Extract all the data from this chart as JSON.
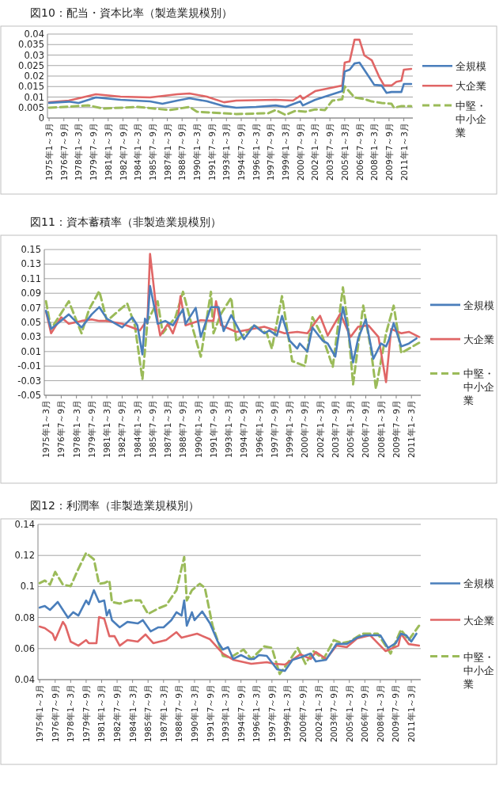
{
  "chart_data": [
    {
      "type": "line",
      "title": "図10：配当・資本比率（製造業規模別）",
      "xlim": [
        "1974-11",
        "2011-12"
      ],
      "ylim": [
        0,
        0.04
      ],
      "yticks": [
        0,
        0.005,
        0.01,
        0.015,
        0.02,
        0.025,
        0.03,
        0.035,
        0.04
      ],
      "grid": "y",
      "legend": "right",
      "xticks": [
        {
          "value": "1975-01",
          "label": "1975年1～3月"
        },
        {
          "value": "1976-07",
          "label": "1976年7～9月"
        },
        {
          "value": "1978-01",
          "label": "1978年1～3月"
        },
        {
          "value": "1979-07",
          "label": "1979年7～9月"
        },
        {
          "value": "1981-01",
          "label": "1981年1～3月"
        },
        {
          "value": "1982-07",
          "label": "1982年7～9月"
        },
        {
          "value": "1984-01",
          "label": "1984年1～3月"
        },
        {
          "value": "1985-07",
          "label": "1985年7～9月"
        },
        {
          "value": "1987-01",
          "label": "1987年1～3月"
        },
        {
          "value": "1988-07",
          "label": "1988年7～9月"
        },
        {
          "value": "1990-01",
          "label": "1990年1～3月"
        },
        {
          "value": "1991-07",
          "label": "1991年7～9月"
        },
        {
          "value": "1993-01",
          "label": "1993年1～3月"
        },
        {
          "value": "1994-07",
          "label": "1994年7～9月"
        },
        {
          "value": "1996-01",
          "label": "1996年1～3月"
        },
        {
          "value": "1997-07",
          "label": "1997年7～9月"
        },
        {
          "value": "1999-01",
          "label": "1999年1～3月"
        },
        {
          "value": "2000-07",
          "label": "2000年7～9月"
        },
        {
          "value": "2002-01",
          "label": "2002年1～3月"
        },
        {
          "value": "2003-07",
          "label": "2003年7～9月"
        },
        {
          "value": "2005-01",
          "label": "2005年1～3月"
        },
        {
          "value": "2006-07",
          "label": "2006年7～9月"
        },
        {
          "value": "2008-01",
          "label": "2008年1～3月"
        },
        {
          "value": "2009-07",
          "label": "2009年7～9月"
        },
        {
          "value": "2011-01",
          "label": "2011年1～3月"
        }
      ],
      "series": [
        {
          "name": "全規模",
          "color": "#4a7ebb",
          "line_style": "solid",
          "x": [
            "1975-01",
            "1977-01",
            "1978-01",
            "1979-10",
            "1982-04",
            "1985-04",
            "1986-07",
            "1988-01",
            "1989-04",
            "1991-01",
            "1992-10",
            "1994-01",
            "1996-01",
            "1998-01",
            "1999-01",
            "2000-07",
            "2000-10",
            "2002-01",
            "2004-01",
            "2004-10",
            "2005-01",
            "2005-07",
            "2006-01",
            "2006-07",
            "2007-04",
            "2008-01",
            "2008-10",
            "2009-04",
            "2009-10",
            "2010-10",
            "2011-01",
            "2011-10"
          ],
          "values": [
            0.0072,
            0.0078,
            0.0072,
            0.0098,
            0.0087,
            0.0079,
            0.0068,
            0.0083,
            0.0094,
            0.008,
            0.0057,
            0.0049,
            0.0053,
            0.006,
            0.0053,
            0.0079,
            0.006,
            0.0087,
            0.0117,
            0.0128,
            0.0222,
            0.023,
            0.026,
            0.0264,
            0.0211,
            0.0158,
            0.0155,
            0.012,
            0.0124,
            0.0124,
            0.0162,
            0.0162
          ]
        },
        {
          "name": "大企業",
          "color": "#e06666",
          "line_style": "solid",
          "x": [
            "1975-01",
            "1977-01",
            "1979-10",
            "1982-04",
            "1985-04",
            "1988-01",
            "1989-04",
            "1991-01",
            "1992-10",
            "1994-01",
            "1998-01",
            "1999-10",
            "2000-07",
            "2000-10",
            "2002-01",
            "2004-10",
            "2005-01",
            "2005-07",
            "2006-01",
            "2006-07",
            "2007-01",
            "2007-10",
            "2008-07",
            "2009-01",
            "2009-10",
            "2010-04",
            "2010-10",
            "2011-01",
            "2011-10"
          ],
          "values": [
            0.0075,
            0.0083,
            0.0113,
            0.0102,
            0.0098,
            0.0113,
            0.0117,
            0.0102,
            0.0075,
            0.0083,
            0.0087,
            0.0083,
            0.0106,
            0.0091,
            0.0128,
            0.0155,
            0.0264,
            0.027,
            0.0373,
            0.0373,
            0.0298,
            0.0275,
            0.0196,
            0.0155,
            0.0155,
            0.0173,
            0.0177,
            0.023,
            0.0234
          ]
        },
        {
          "name": "中堅・中小企業",
          "color": "#9bbb59",
          "line_style": "dashed",
          "x": [
            "1975-01",
            "1979-01",
            "1980-07",
            "1984-01",
            "1987-04",
            "1989-04",
            "1990-01",
            "1994-01",
            "1997-04",
            "1998-01",
            "1999-01",
            "2000-01",
            "2001-01",
            "2002-01",
            "2003-01",
            "2003-10",
            "2004-10",
            "2005-01",
            "2006-01",
            "2007-01",
            "2007-10",
            "2008-10",
            "2009-10",
            "2010-01",
            "2010-10",
            "2011-10"
          ],
          "values": [
            0.0049,
            0.006,
            0.0045,
            0.0053,
            0.0038,
            0.0053,
            0.003,
            0.0019,
            0.0023,
            0.0038,
            0.0015,
            0.0034,
            0.003,
            0.0041,
            0.0038,
            0.0083,
            0.009,
            0.0151,
            0.0098,
            0.009,
            0.0079,
            0.0072,
            0.0068,
            0.0049,
            0.0057,
            0.0057
          ]
        }
      ]
    },
    {
      "type": "line",
      "title": "図11：資本蓄積率（非製造業規模別）",
      "xlim": [
        "1974-11",
        "2011-12"
      ],
      "ylim": [
        -0.05,
        0.15
      ],
      "yticks": [
        -0.05,
        -0.03,
        -0.01,
        0.01,
        0.03,
        0.05,
        0.07,
        0.09,
        0.11,
        0.13,
        0.15
      ],
      "grid": "y",
      "legend": "right",
      "xticks": [
        {
          "value": "1975-01",
          "label": "1975年1～3月"
        },
        {
          "value": "1976-07",
          "label": "1976年7～9月"
        },
        {
          "value": "1978-01",
          "label": "1978年1～3月"
        },
        {
          "value": "1979-07",
          "label": "1979年7～9月"
        },
        {
          "value": "1981-01",
          "label": "1981年1～3月"
        },
        {
          "value": "1982-07",
          "label": "1982年7～9月"
        },
        {
          "value": "1984-01",
          "label": "1984年1～3月"
        },
        {
          "value": "1985-07",
          "label": "1985年7～9月"
        },
        {
          "value": "1987-01",
          "label": "1987年1～3月"
        },
        {
          "value": "1988-07",
          "label": "1988年7～9月"
        },
        {
          "value": "1990-01",
          "label": "1990年1～3月"
        },
        {
          "value": "1991-07",
          "label": "1991年7～9月"
        },
        {
          "value": "1993-01",
          "label": "1993年1～3月"
        },
        {
          "value": "1994-07",
          "label": "1994年7～9月"
        },
        {
          "value": "1996-01",
          "label": "1996年1～3月"
        },
        {
          "value": "1997-07",
          "label": "1997年7～9月"
        },
        {
          "value": "1999-01",
          "label": "1999年1～3月"
        },
        {
          "value": "2000-07",
          "label": "2000年7～9月"
        },
        {
          "value": "2002-01",
          "label": "2002年1～3月"
        },
        {
          "value": "2003-07",
          "label": "2003年7～9月"
        },
        {
          "value": "2005-01",
          "label": "2005年1～3月"
        },
        {
          "value": "2006-07",
          "label": "2006年7～9月"
        },
        {
          "value": "2008-01",
          "label": "2008年1～3月"
        },
        {
          "value": "2009-07",
          "label": "2009年7～9月"
        },
        {
          "value": "2011-01",
          "label": "2011年1～3月"
        }
      ],
      "series": [
        {
          "name": "全規模",
          "color": "#4a7ebb",
          "line_style": "solid",
          "x": [
            "1975-01",
            "1975-07",
            "1977-04",
            "1978-07",
            "1979-07",
            "1980-04",
            "1981-01",
            "1981-10",
            "1982-07",
            "1983-07",
            "1984-01",
            "1984-07",
            "1984-10",
            "1985-01",
            "1985-04",
            "1986-01",
            "1986-10",
            "1987-07",
            "1988-07",
            "1988-10",
            "1989-10",
            "1990-04",
            "1991-04",
            "1992-01",
            "1992-07",
            "1993-04",
            "1994-07",
            "1995-07",
            "1996-07",
            "1997-01",
            "1997-10",
            "1998-04",
            "1999-01",
            "1999-10",
            "2000-01",
            "2000-10",
            "2001-04",
            "2002-04",
            "2002-10",
            "2003-07",
            "2004-04",
            "2004-10",
            "2005-04",
            "2005-10",
            "2006-07",
            "2007-04",
            "2008-01",
            "2008-07",
            "2008-10",
            "2009-04",
            "2010-01",
            "2010-10",
            "2011-07"
          ],
          "values": [
            0.066,
            0.041,
            0.061,
            0.043,
            0.061,
            0.071,
            0.055,
            0.049,
            0.043,
            0.057,
            0.046,
            0.006,
            0.055,
            0.049,
            0.1,
            0.048,
            0.052,
            0.046,
            0.068,
            0.048,
            0.07,
            0.03,
            0.071,
            0.071,
            0.038,
            0.06,
            0.027,
            0.046,
            0.035,
            0.039,
            0.032,
            0.059,
            0.025,
            0.014,
            0.021,
            0.01,
            0.043,
            0.025,
            0.021,
            0.003,
            0.071,
            0.039,
            -0.005,
            0.028,
            0.054,
            0,
            0.021,
            0.017,
            0.025,
            0.049,
            0.017,
            0.021,
            0.028
          ]
        },
        {
          "name": "大企業",
          "color": "#e06666",
          "line_style": "solid",
          "x": [
            "1975-01",
            "1975-07",
            "1976-07",
            "1977-04",
            "1978-07",
            "1979-07",
            "1980-04",
            "1981-01",
            "1982-07",
            "1983-07",
            "1984-04",
            "1985-01",
            "1985-04",
            "1986-01",
            "1986-04",
            "1987-01",
            "1987-07",
            "1988-01",
            "1988-04",
            "1988-10",
            "1990-04",
            "1991-07",
            "1991-10",
            "1992-04",
            "1993-10",
            "1996-07",
            "1998-07",
            "1999-10",
            "2000-10",
            "2002-01",
            "2002-10",
            "2004-01",
            "2005-01",
            "2005-10",
            "2006-10",
            "2007-10",
            "2008-07",
            "2009-01",
            "2010-01",
            "2010-10",
            "2011-10"
          ],
          "values": [
            0.065,
            0.035,
            0.057,
            0.048,
            0.052,
            0.054,
            0.052,
            0.052,
            0.048,
            0.043,
            0.039,
            0.054,
            0.144,
            0.052,
            0.032,
            0.048,
            0.035,
            0.055,
            0.086,
            0.046,
            0.053,
            0.052,
            0.079,
            0.046,
            0.037,
            0.044,
            0.035,
            0.037,
            0.035,
            0.059,
            0.032,
            0.062,
            0.03,
            0.044,
            0.046,
            0.03,
            -0.032,
            0.041,
            0.035,
            0.037,
            0.03
          ]
        },
        {
          "name": "中堅・中小企業",
          "color": "#9bbb59",
          "line_style": "dashed",
          "x": [
            "1975-01",
            "1975-07",
            "1977-04",
            "1978-07",
            "1979-04",
            "1980-04",
            "1981-01",
            "1983-01",
            "1983-10",
            "1984-07",
            "1985-01",
            "1986-01",
            "1986-07",
            "1987-10",
            "1988-07",
            "1989-04",
            "1990-04",
            "1991-04",
            "1991-07",
            "1992-04",
            "1993-04",
            "1993-10",
            "1995-07",
            "1996-10",
            "1997-04",
            "1998-04",
            "1999-04",
            "2000-07",
            "2001-04",
            "2002-04",
            "2003-04",
            "2004-04",
            "2004-10",
            "2005-04",
            "2006-04",
            "2007-01",
            "2007-07",
            "2008-07",
            "2009-04",
            "2010-01",
            "2010-10",
            "2011-10"
          ],
          "values": [
            0.079,
            0.041,
            0.079,
            0.035,
            0.068,
            0.093,
            0.052,
            0.076,
            0.046,
            -0.028,
            0.052,
            0.079,
            0.035,
            0.057,
            0.092,
            0.052,
            0.003,
            0.092,
            0.035,
            0.062,
            0.084,
            0.024,
            0.046,
            0.035,
            0.014,
            0.086,
            -0.003,
            -0.01,
            0.057,
            0.03,
            -0.011,
            0.098,
            0.046,
            -0.035,
            0.073,
            0.014,
            -0.041,
            0.035,
            0.073,
            0.008,
            0.014,
            0.022
          ]
        }
      ]
    },
    {
      "type": "line",
      "title": "図12：利潤率（非製造業規模別）",
      "xlim": [
        "1974-11",
        "2011-12"
      ],
      "ylim": [
        0.04,
        0.14
      ],
      "yticks": [
        0.04,
        0.06,
        0.08,
        0.1,
        0.12,
        0.14
      ],
      "grid": "y",
      "legend": "right",
      "xticks": [
        {
          "value": "1975-01",
          "label": "1975年1～3月"
        },
        {
          "value": "1976-07",
          "label": "1976年7～9月"
        },
        {
          "value": "1978-01",
          "label": "1978年1～3月"
        },
        {
          "value": "1979-07",
          "label": "1979年7～9月"
        },
        {
          "value": "1981-01",
          "label": "1981年1～3月"
        },
        {
          "value": "1982-07",
          "label": "1982年7～9月"
        },
        {
          "value": "1984-01",
          "label": "1984年1～3月"
        },
        {
          "value": "1985-07",
          "label": "1985年7～9月"
        },
        {
          "value": "1987-01",
          "label": "1987年1～3月"
        },
        {
          "value": "1988-07",
          "label": "1988年7～9月"
        },
        {
          "value": "1990-01",
          "label": "1990年1～3月"
        },
        {
          "value": "1991-07",
          "label": "1991年7～9月"
        },
        {
          "value": "1993-01",
          "label": "1993年1～3月"
        },
        {
          "value": "1994-07",
          "label": "1994年7～9月"
        },
        {
          "value": "1996-01",
          "label": "1996年1～3月"
        },
        {
          "value": "1997-07",
          "label": "1997年7～9月"
        },
        {
          "value": "1999-01",
          "label": "1999年1～3月"
        },
        {
          "value": "2000-07",
          "label": "2000年7～9月"
        },
        {
          "value": "2002-01",
          "label": "2002年1～3月"
        },
        {
          "value": "2003-07",
          "label": "2003年7～9月"
        },
        {
          "value": "2005-01",
          "label": "2005年1～3月"
        },
        {
          "value": "2006-07",
          "label": "2006年7～9月"
        },
        {
          "value": "2008-01",
          "label": "2008年1～3月"
        },
        {
          "value": "2009-07",
          "label": "2009年7～9月"
        },
        {
          "value": "2011-01",
          "label": "2011年1～3月"
        }
      ],
      "series": [
        {
          "name": "全規模",
          "color": "#4a7ebb",
          "line_style": "solid",
          "x": [
            "1975-01",
            "1975-07",
            "1976-01",
            "1976-10",
            "1977-10",
            "1978-04",
            "1978-10",
            "1979-07",
            "1979-10",
            "1980-04",
            "1980-10",
            "1981-04",
            "1981-07",
            "1981-10",
            "1982-01",
            "1982-10",
            "1983-07",
            "1984-07",
            "1985-01",
            "1985-10",
            "1986-07",
            "1987-01",
            "1987-10",
            "1988-04",
            "1988-10",
            "1989-01",
            "1989-04",
            "1989-10",
            "1990-01",
            "1990-10",
            "1991-01",
            "1991-07",
            "1992-04",
            "1992-10",
            "1993-04",
            "1993-10",
            "1994-07",
            "1995-04",
            "1995-10",
            "1996-04",
            "1997-01",
            "1998-01",
            "1998-10",
            "1999-07",
            "2000-04",
            "2001-04",
            "2001-10",
            "2002-10",
            "2003-10",
            "2004-10",
            "2005-10",
            "2006-07",
            "2007-04",
            "2008-01",
            "2008-10",
            "2009-07",
            "2010-01",
            "2010-07",
            "2011-01",
            "2011-07"
          ],
          "values": [
            0.0864,
            0.0874,
            0.0849,
            0.09,
            0.0798,
            0.0834,
            0.0813,
            0.091,
            0.0885,
            0.0976,
            0.09,
            0.091,
            0.0813,
            0.0849,
            0.0783,
            0.0737,
            0.0772,
            0.0762,
            0.0783,
            0.0711,
            0.0737,
            0.0737,
            0.0783,
            0.0834,
            0.0813,
            0.091,
            0.0747,
            0.0834,
            0.0783,
            0.0839,
            0.0813,
            0.0762,
            0.0645,
            0.0594,
            0.0609,
            0.0533,
            0.0558,
            0.0533,
            0.0533,
            0.0558,
            0.0553,
            0.0466,
            0.0456,
            0.0528,
            0.0543,
            0.0568,
            0.0517,
            0.0528,
            0.063,
            0.063,
            0.067,
            0.0686,
            0.0686,
            0.0686,
            0.0604,
            0.0635,
            0.0696,
            0.0686,
            0.0645,
            0.0696
          ]
        },
        {
          "name": "大企業",
          "color": "#e06666",
          "line_style": "solid",
          "x": [
            "1975-01",
            "1975-07",
            "1976-04",
            "1976-07",
            "1977-04",
            "1977-07",
            "1978-01",
            "1978-10",
            "1979-07",
            "1979-10",
            "1980-07",
            "1980-10",
            "1981-04",
            "1981-10",
            "1982-04",
            "1982-10",
            "1983-07",
            "1984-07",
            "1985-04",
            "1986-01",
            "1987-04",
            "1988-04",
            "1988-10",
            "1990-04",
            "1991-07",
            "1992-10",
            "1993-10",
            "1995-07",
            "1997-01",
            "1997-10",
            "1998-10",
            "1999-07",
            "2000-04",
            "2001-04",
            "2001-10",
            "2002-10",
            "2003-10",
            "2004-10",
            "2005-10",
            "2007-01",
            "2008-07",
            "2009-10",
            "2010-01",
            "2010-10",
            "2011-10"
          ],
          "values": [
            0.0742,
            0.0732,
            0.0696,
            0.0655,
            0.0772,
            0.0747,
            0.0645,
            0.0619,
            0.0655,
            0.0635,
            0.0635,
            0.0803,
            0.0793,
            0.068,
            0.068,
            0.0619,
            0.0655,
            0.0645,
            0.0691,
            0.0635,
            0.0655,
            0.0706,
            0.067,
            0.0696,
            0.066,
            0.0568,
            0.0528,
            0.0502,
            0.0512,
            0.0502,
            0.0497,
            0.0528,
            0.0563,
            0.0533,
            0.0578,
            0.0533,
            0.0619,
            0.0609,
            0.0665,
            0.0686,
            0.0584,
            0.0619,
            0.0696,
            0.0629,
            0.0619
          ]
        },
        {
          "name": "中堅・中小企業",
          "color": "#9bbb59",
          "line_style": "dashed",
          "x": [
            "1975-01",
            "1975-07",
            "1976-01",
            "1976-07",
            "1977-04",
            "1978-01",
            "1978-10",
            "1979-07",
            "1980-04",
            "1980-10",
            "1981-04",
            "1981-10",
            "1982-01",
            "1982-10",
            "1983-10",
            "1984-10",
            "1985-07",
            "1986-07",
            "1987-04",
            "1988-04",
            "1989-01",
            "1989-04",
            "1989-10",
            "1990-07",
            "1991-01",
            "1991-10",
            "1992-10",
            "1993-07",
            "1994-10",
            "1995-07",
            "1996-10",
            "1997-07",
            "1998-04",
            "1999-04",
            "2000-01",
            "2000-10",
            "2001-07",
            "2002-07",
            "2003-07",
            "2004-04",
            "2005-01",
            "2006-04",
            "2007-10",
            "2009-01",
            "2010-01",
            "2010-10",
            "2011-10"
          ],
          "values": [
            0.1022,
            0.1038,
            0.1012,
            0.1094,
            0.1012,
            0.1002,
            0.1114,
            0.1216,
            0.1175,
            0.1017,
            0.1022,
            0.1038,
            0.09,
            0.089,
            0.091,
            0.091,
            0.0823,
            0.0859,
            0.0879,
            0.0976,
            0.119,
            0.091,
            0.0976,
            0.1017,
            0.0992,
            0.0747,
            0.0553,
            0.0543,
            0.0594,
            0.0533,
            0.0614,
            0.0604,
            0.0436,
            0.0528,
            0.0604,
            0.0502,
            0.0584,
            0.0533,
            0.0655,
            0.0635,
            0.0645,
            0.0696,
            0.0696,
            0.0568,
            0.0721,
            0.0655,
            0.0747
          ]
        }
      ]
    }
  ]
}
